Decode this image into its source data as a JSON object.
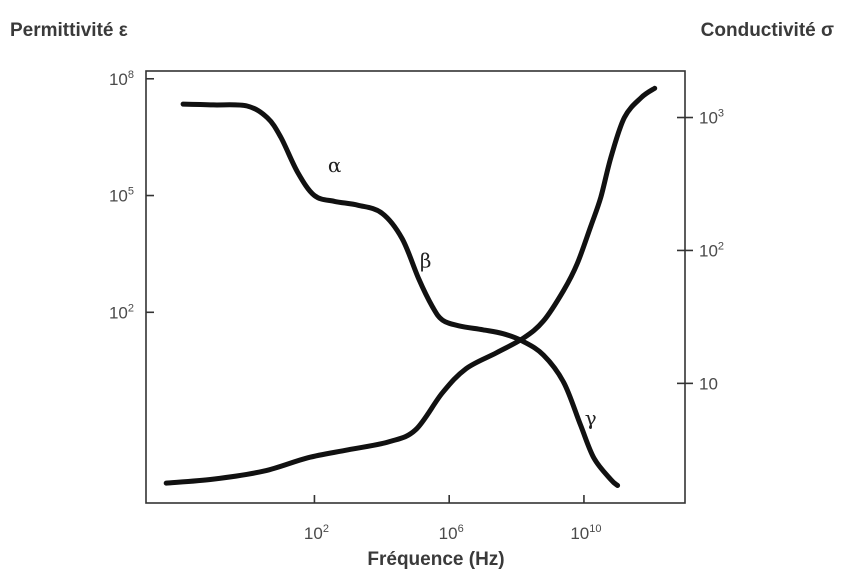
{
  "chart_data": {
    "type": "line",
    "title": "",
    "xlabel": "Fréquence (Hz)",
    "ylabel_left": "Permittivité ε",
    "ylabel_right": "Conductivité σ",
    "xscale": "log",
    "xlim_log10": [
      -3,
      13
    ],
    "y_left_scale": "log",
    "y_left_lim_log10": [
      -2.9,
      8.2
    ],
    "y_right_scale": "log",
    "y_right_lim_log10": [
      0.1,
      3.35
    ],
    "grid": false,
    "legend": "none",
    "x_ticks": [
      {
        "base": "10",
        "exp": "2",
        "log10": 2
      },
      {
        "base": "10",
        "exp": "6",
        "log10": 6
      },
      {
        "base": "10",
        "exp": "10",
        "log10": 10
      }
    ],
    "y_left_ticks": [
      {
        "base": "10",
        "exp": "8",
        "log10": 8
      },
      {
        "base": "10",
        "exp": "5",
        "log10": 5
      },
      {
        "base": "10",
        "exp": "2",
        "log10": 2
      }
    ],
    "y_right_ticks": [
      {
        "base": "10",
        "exp": "3",
        "log10": 3
      },
      {
        "base": "10",
        "exp": "2",
        "log10": 2
      },
      {
        "base": "10",
        "exp": "",
        "log10": 1
      }
    ],
    "series": [
      {
        "axis": "left",
        "x_log10": [
          -1.9,
          -1.0,
          0.0,
          0.6,
          1.0,
          1.5,
          2.0,
          2.6,
          3.3,
          4.0,
          4.6,
          5.1,
          5.5,
          5.8,
          6.3,
          7.0,
          7.6,
          8.2,
          8.8,
          9.4,
          9.9,
          10.3,
          10.8,
          11.0
        ],
        "y_log10": [
          7.35,
          7.33,
          7.3,
          7.0,
          6.5,
          5.6,
          5.0,
          4.85,
          4.75,
          4.55,
          3.9,
          2.85,
          2.15,
          1.8,
          1.65,
          1.55,
          1.45,
          1.25,
          0.9,
          0.2,
          -0.9,
          -1.75,
          -2.3,
          -2.45
        ]
      },
      {
        "axis": "right",
        "x_log10": [
          -2.4,
          -1.0,
          0.5,
          1.8,
          3.0,
          4.2,
          5.0,
          5.8,
          6.5,
          7.4,
          8.2,
          8.8,
          9.4,
          9.8,
          10.2,
          10.5,
          10.8,
          11.2,
          11.7,
          12.1
        ],
        "y_log10": [
          0.25,
          0.28,
          0.34,
          0.44,
          0.5,
          0.56,
          0.65,
          0.93,
          1.11,
          1.23,
          1.34,
          1.47,
          1.7,
          1.9,
          2.18,
          2.4,
          2.7,
          3.0,
          3.15,
          3.22
        ]
      }
    ],
    "annotations": [
      {
        "text": "α",
        "x_log10": 2.6,
        "y_log10": 5.6
      },
      {
        "text": "β",
        "x_log10": 5.3,
        "y_log10": 3.15
      },
      {
        "text": "γ",
        "x_log10": 10.2,
        "y_log10": -0.9
      }
    ]
  }
}
